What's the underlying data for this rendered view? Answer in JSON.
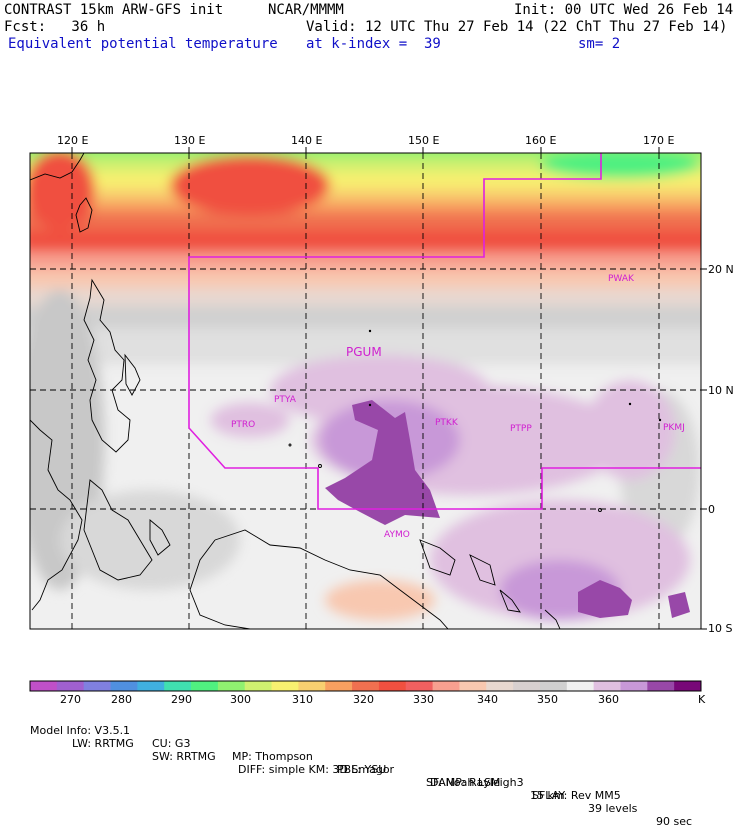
{
  "header": {
    "model": "CONTRAST 15km ARW-GFS init",
    "org": "NCAR/MMMM",
    "init": "Init: 00 UTC Wed 26 Feb 14",
    "fcst": "Fcst:   36 h",
    "valid": "Valid: 12 UTC Thu 27 Feb 14 (22 ChT Thu 27 Feb 14)",
    "field": "Equivalent potential temperature",
    "level": "at k-index =  39",
    "smooth": "sm= 2"
  },
  "axes": {
    "lon_labels": [
      "120 E",
      "130 E",
      "140 E",
      "150 E",
      "160 E",
      "170 E"
    ],
    "lat_labels": [
      "20 N",
      "10 N",
      "0",
      "10 S"
    ]
  },
  "stations": [
    "PGUM",
    "PTYA",
    "PTRO",
    "PTKK",
    "PTPP",
    "PKMJ",
    "PWAK",
    "AYMO"
  ],
  "colorbar": {
    "labels": [
      "270",
      "280",
      "290",
      "300",
      "310",
      "320",
      "330",
      "340",
      "350",
      "360"
    ],
    "unit": "K",
    "colors": [
      "#c050c8",
      "#a060d0",
      "#8080e0",
      "#5090e0",
      "#40b0e0",
      "#40e0b0",
      "#50f080",
      "#90f070",
      "#d0f070",
      "#f8f070",
      "#f8d070",
      "#f8a060",
      "#f07050",
      "#f05040",
      "#f06060",
      "#f8a090",
      "#f8c8b0",
      "#e8d8d0",
      "#d8d0d0",
      "#d0d0d0",
      "#f0f0f0",
      "#e0c0e0",
      "#c898d8",
      "#9848a8",
      "#780878"
    ]
  },
  "footer": {
    "line1": [
      "Model Info: V3.5.1",
      "CU: G3",
      "MP: Thompson",
      "PBL: YSU",
      "SF: Noah LSM",
      "15 km",
      "39 levels",
      "90 sec"
    ],
    "line2": [
      "LW: RRTMG",
      "SW: RRTMG",
      "DIFF: simple KM: 3D Smagor",
      "DAMP: Rayleigh3",
      "SFLAY: Rev MM5"
    ]
  }
}
